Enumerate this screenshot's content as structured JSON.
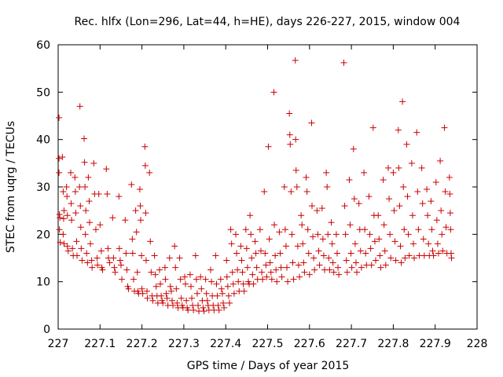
{
  "chart_data": {
    "type": "scatter",
    "title": "Rec. hlfx (Lon=296, Lat=44, h=HE), days 226-227, 2015, window 004",
    "xlabel": "GPS time / Days of year 2015",
    "ylabel": "STEC from uqrg / TECUs",
    "xlim": [
      227,
      228
    ],
    "ylim": [
      0,
      60
    ],
    "x_ticks": [
      "227",
      "227.1",
      "227.2",
      "227.3",
      "227.4",
      "227.5",
      "227.6",
      "227.7",
      "227.8",
      "227.9",
      "228"
    ],
    "y_ticks": [
      "0",
      "10",
      "20",
      "30",
      "40",
      "50",
      "60"
    ],
    "grid": false,
    "marker": "+",
    "color": "#cc0000",
    "points": [
      [
        227.002,
        44.6
      ],
      [
        227.002,
        36.0
      ],
      [
        227.002,
        33.0
      ],
      [
        227.003,
        24.2
      ],
      [
        227.004,
        23.5
      ],
      [
        227.003,
        21.0
      ],
      [
        227.005,
        18.3
      ],
      [
        227.01,
        36.3
      ],
      [
        227.012,
        29.0
      ],
      [
        227.014,
        25.0
      ],
      [
        227.013,
        23.3
      ],
      [
        227.012,
        20.0
      ],
      [
        227.014,
        18.0
      ],
      [
        227.02,
        30.0
      ],
      [
        227.021,
        28.0
      ],
      [
        227.022,
        24.0
      ],
      [
        227.022,
        17.5
      ],
      [
        227.024,
        16.5
      ],
      [
        227.03,
        33.0
      ],
      [
        227.031,
        26.5
      ],
      [
        227.032,
        23.0
      ],
      [
        227.034,
        17.0
      ],
      [
        227.036,
        15.5
      ],
      [
        227.04,
        32.0
      ],
      [
        227.041,
        29.0
      ],
      [
        227.042,
        24.5
      ],
      [
        227.044,
        18.5
      ],
      [
        227.045,
        15.5
      ],
      [
        227.052,
        47.0
      ],
      [
        227.051,
        30.0
      ],
      [
        227.053,
        26.0
      ],
      [
        227.054,
        21.5
      ],
      [
        227.055,
        17.0
      ],
      [
        227.057,
        14.5
      ],
      [
        227.062,
        40.2
      ],
      [
        227.063,
        35.2
      ],
      [
        227.064,
        30.0
      ],
      [
        227.066,
        25.0
      ],
      [
        227.065,
        20.0
      ],
      [
        227.068,
        16.0
      ],
      [
        227.07,
        14.0
      ],
      [
        227.072,
        32.0
      ],
      [
        227.074,
        27.0
      ],
      [
        227.075,
        22.5
      ],
      [
        227.077,
        18.0
      ],
      [
        227.08,
        14.5
      ],
      [
        227.081,
        13.0
      ],
      [
        227.085,
        35.0
      ],
      [
        227.087,
        28.5
      ],
      [
        227.09,
        21.0
      ],
      [
        227.093,
        15.0
      ],
      [
        227.094,
        13.5
      ],
      [
        227.097,
        28.5
      ],
      [
        227.1,
        22.0
      ],
      [
        227.103,
        16.5
      ],
      [
        227.104,
        13.0
      ],
      [
        227.106,
        12.5
      ],
      [
        227.115,
        33.8
      ],
      [
        227.117,
        28.5
      ],
      [
        227.119,
        17.0
      ],
      [
        227.12,
        15.0
      ],
      [
        227.123,
        14.0
      ],
      [
        227.13,
        23.5
      ],
      [
        227.132,
        15.0
      ],
      [
        227.134,
        13.0
      ],
      [
        227.136,
        12.0
      ],
      [
        227.145,
        28.0
      ],
      [
        227.146,
        17.0
      ],
      [
        227.148,
        14.5
      ],
      [
        227.15,
        13.5
      ],
      [
        227.152,
        10.5
      ],
      [
        227.16,
        23.0
      ],
      [
        227.162,
        16.0
      ],
      [
        227.164,
        12.5
      ],
      [
        227.166,
        9.0
      ],
      [
        227.168,
        8.5
      ],
      [
        227.175,
        30.5
      ],
      [
        227.177,
        19.0
      ],
      [
        227.178,
        16.0
      ],
      [
        227.18,
        10.5
      ],
      [
        227.182,
        8.0
      ],
      [
        227.185,
        25.0
      ],
      [
        227.187,
        20.5
      ],
      [
        227.189,
        12.0
      ],
      [
        227.19,
        8.0
      ],
      [
        227.192,
        7.5
      ],
      [
        227.195,
        29.5
      ],
      [
        227.196,
        26.0
      ],
      [
        227.197,
        23.0
      ],
      [
        227.199,
        15.5
      ],
      [
        227.2,
        8.5
      ],
      [
        227.202,
        7.5
      ],
      [
        227.207,
        38.5
      ],
      [
        227.208,
        34.5
      ],
      [
        227.209,
        24.5
      ],
      [
        227.21,
        14.5
      ],
      [
        227.212,
        8.0
      ],
      [
        227.213,
        6.5
      ],
      [
        227.218,
        33.0
      ],
      [
        227.22,
        18.5
      ],
      [
        227.222,
        12.0
      ],
      [
        227.224,
        7.0
      ],
      [
        227.226,
        6.0
      ],
      [
        227.23,
        15.5
      ],
      [
        227.232,
        11.5
      ],
      [
        227.234,
        9.0
      ],
      [
        227.236,
        7.0
      ],
      [
        227.238,
        5.5
      ],
      [
        227.242,
        12.5
      ],
      [
        227.244,
        9.5
      ],
      [
        227.246,
        7.0
      ],
      [
        227.248,
        6.0
      ],
      [
        227.25,
        5.5
      ],
      [
        227.255,
        13.0
      ],
      [
        227.256,
        10.5
      ],
      [
        227.258,
        7.5
      ],
      [
        227.26,
        6.5
      ],
      [
        227.262,
        5.0
      ],
      [
        227.266,
        15.0
      ],
      [
        227.268,
        9.0
      ],
      [
        227.27,
        8.0
      ],
      [
        227.272,
        6.0
      ],
      [
        227.274,
        5.0
      ],
      [
        227.278,
        17.5
      ],
      [
        227.28,
        13.0
      ],
      [
        227.282,
        8.5
      ],
      [
        227.284,
        5.5
      ],
      [
        227.286,
        4.5
      ],
      [
        227.29,
        15.0
      ],
      [
        227.292,
        10.5
      ],
      [
        227.294,
        6.5
      ],
      [
        227.296,
        5.0
      ],
      [
        227.298,
        4.5
      ],
      [
        227.302,
        11.0
      ],
      [
        227.304,
        9.5
      ],
      [
        227.306,
        6.0
      ],
      [
        227.308,
        4.5
      ],
      [
        227.31,
        4.0
      ],
      [
        227.315,
        11.5
      ],
      [
        227.317,
        9.0
      ],
      [
        227.319,
        6.5
      ],
      [
        227.321,
        5.0
      ],
      [
        227.323,
        4.0
      ],
      [
        227.328,
        15.5
      ],
      [
        227.33,
        10.5
      ],
      [
        227.332,
        7.5
      ],
      [
        227.334,
        5.0
      ],
      [
        227.336,
        3.8
      ],
      [
        227.34,
        11.0
      ],
      [
        227.342,
        8.5
      ],
      [
        227.344,
        6.0
      ],
      [
        227.346,
        4.5
      ],
      [
        227.348,
        3.8
      ],
      [
        227.352,
        10.5
      ],
      [
        227.354,
        7.5
      ],
      [
        227.356,
        6.0
      ],
      [
        227.358,
        5.0
      ],
      [
        227.36,
        4.0
      ],
      [
        227.364,
        12.5
      ],
      [
        227.366,
        10.0
      ],
      [
        227.368,
        7.0
      ],
      [
        227.37,
        5.0
      ],
      [
        227.372,
        4.0
      ],
      [
        227.376,
        15.5
      ],
      [
        227.378,
        9.5
      ],
      [
        227.38,
        7.0
      ],
      [
        227.382,
        5.0
      ],
      [
        227.384,
        4.0
      ],
      [
        227.388,
        10.5
      ],
      [
        227.39,
        8.5
      ],
      [
        227.392,
        7.5
      ],
      [
        227.394,
        5.5
      ],
      [
        227.396,
        4.5
      ],
      [
        227.402,
        14.5
      ],
      [
        227.403,
        11.0
      ],
      [
        227.405,
        9.0
      ],
      [
        227.407,
        7.0
      ],
      [
        227.409,
        5.5
      ],
      [
        227.412,
        21.0
      ],
      [
        227.414,
        18.0
      ],
      [
        227.416,
        12.0
      ],
      [
        227.418,
        9.5
      ],
      [
        227.42,
        7.5
      ],
      [
        227.424,
        20.0
      ],
      [
        227.426,
        16.0
      ],
      [
        227.428,
        12.5
      ],
      [
        227.43,
        10.0
      ],
      [
        227.432,
        8.0
      ],
      [
        227.436,
        17.5
      ],
      [
        227.438,
        14.5
      ],
      [
        227.44,
        12.0
      ],
      [
        227.442,
        9.5
      ],
      [
        227.444,
        8.0
      ],
      [
        227.448,
        21.0
      ],
      [
        227.45,
        17.0
      ],
      [
        227.452,
        13.0
      ],
      [
        227.454,
        10.0
      ],
      [
        227.456,
        9.5
      ],
      [
        227.458,
        24.0
      ],
      [
        227.46,
        20.0
      ],
      [
        227.462,
        15.0
      ],
      [
        227.464,
        11.5
      ],
      [
        227.466,
        9.5
      ],
      [
        227.47,
        18.5
      ],
      [
        227.472,
        16.0
      ],
      [
        227.474,
        13.0
      ],
      [
        227.476,
        10.5
      ],
      [
        227.482,
        21.0
      ],
      [
        227.484,
        16.5
      ],
      [
        227.486,
        12.0
      ],
      [
        227.488,
        10.5
      ],
      [
        227.492,
        29.0
      ],
      [
        227.494,
        16.0
      ],
      [
        227.496,
        13.5
      ],
      [
        227.498,
        11.0
      ],
      [
        227.502,
        38.5
      ],
      [
        227.504,
        19.0
      ],
      [
        227.506,
        14.0
      ],
      [
        227.508,
        12.0
      ],
      [
        227.51,
        10.5
      ],
      [
        227.515,
        50.0
      ],
      [
        227.516,
        22.0
      ],
      [
        227.518,
        15.5
      ],
      [
        227.52,
        12.5
      ],
      [
        227.522,
        10.0
      ],
      [
        227.528,
        20.5
      ],
      [
        227.53,
        16.0
      ],
      [
        227.532,
        13.0
      ],
      [
        227.534,
        11.0
      ],
      [
        227.54,
        30.0
      ],
      [
        227.542,
        21.0
      ],
      [
        227.544,
        17.5
      ],
      [
        227.546,
        13.0
      ],
      [
        227.548,
        10.0
      ],
      [
        227.552,
        45.5
      ],
      [
        227.553,
        41.0
      ],
      [
        227.554,
        39.0
      ],
      [
        227.556,
        29.0
      ],
      [
        227.558,
        20.0
      ],
      [
        227.56,
        14.0
      ],
      [
        227.562,
        10.5
      ],
      [
        227.566,
        56.7
      ],
      [
        227.567,
        40.0
      ],
      [
        227.568,
        33.5
      ],
      [
        227.57,
        30.0
      ],
      [
        227.572,
        17.5
      ],
      [
        227.574,
        13.5
      ],
      [
        227.576,
        11.0
      ],
      [
        227.58,
        24.0
      ],
      [
        227.582,
        22.0
      ],
      [
        227.584,
        18.0
      ],
      [
        227.586,
        14.0
      ],
      [
        227.588,
        12.0
      ],
      [
        227.592,
        32.0
      ],
      [
        227.594,
        29.0
      ],
      [
        227.596,
        21.0
      ],
      [
        227.598,
        16.0
      ],
      [
        227.6,
        11.5
      ],
      [
        227.605,
        43.5
      ],
      [
        227.606,
        26.0
      ],
      [
        227.608,
        19.5
      ],
      [
        227.61,
        15.0
      ],
      [
        227.612,
        12.5
      ],
      [
        227.618,
        25.0
      ],
      [
        227.62,
        20.0
      ],
      [
        227.622,
        16.5
      ],
      [
        227.624,
        13.5
      ],
      [
        227.63,
        25.5
      ],
      [
        227.632,
        19.0
      ],
      [
        227.634,
        15.5
      ],
      [
        227.636,
        12.5
      ],
      [
        227.64,
        33.0
      ],
      [
        227.642,
        30.0
      ],
      [
        227.644,
        20.0
      ],
      [
        227.646,
        15.0
      ],
      [
        227.648,
        12.5
      ],
      [
        227.652,
        22.5
      ],
      [
        227.654,
        18.0
      ],
      [
        227.656,
        14.0
      ],
      [
        227.658,
        12.0
      ],
      [
        227.664,
        20.0
      ],
      [
        227.666,
        16.0
      ],
      [
        227.668,
        13.0
      ],
      [
        227.67,
        11.5
      ],
      [
        227.682,
        56.2
      ],
      [
        227.684,
        26.0
      ],
      [
        227.686,
        20.0
      ],
      [
        227.688,
        14.5
      ],
      [
        227.69,
        12.0
      ],
      [
        227.695,
        31.5
      ],
      [
        227.697,
        22.0
      ],
      [
        227.699,
        16.0
      ],
      [
        227.701,
        13.0
      ],
      [
        227.705,
        38.0
      ],
      [
        227.707,
        27.5
      ],
      [
        227.709,
        18.0
      ],
      [
        227.711,
        14.0
      ],
      [
        227.713,
        12.0
      ],
      [
        227.718,
        26.5
      ],
      [
        227.72,
        21.0
      ],
      [
        227.722,
        16.5
      ],
      [
        227.724,
        13.0
      ],
      [
        227.73,
        33.0
      ],
      [
        227.732,
        21.0
      ],
      [
        227.734,
        16.0
      ],
      [
        227.736,
        13.5
      ],
      [
        227.742,
        28.0
      ],
      [
        227.744,
        20.0
      ],
      [
        227.746,
        17.0
      ],
      [
        227.748,
        13.5
      ],
      [
        227.752,
        42.5
      ],
      [
        227.754,
        24.0
      ],
      [
        227.756,
        18.5
      ],
      [
        227.758,
        14.5
      ],
      [
        227.764,
        24.0
      ],
      [
        227.766,
        19.0
      ],
      [
        227.768,
        15.5
      ],
      [
        227.77,
        13.0
      ],
      [
        227.776,
        31.5
      ],
      [
        227.778,
        22.0
      ],
      [
        227.78,
        16.5
      ],
      [
        227.782,
        13.5
      ],
      [
        227.788,
        34.0
      ],
      [
        227.79,
        27.5
      ],
      [
        227.792,
        20.0
      ],
      [
        227.794,
        15.0
      ],
      [
        227.8,
        33.0
      ],
      [
        227.802,
        25.0
      ],
      [
        227.804,
        18.5
      ],
      [
        227.806,
        14.5
      ],
      [
        227.812,
        42.0
      ],
      [
        227.813,
        34.0
      ],
      [
        227.815,
        26.0
      ],
      [
        227.817,
        17.5
      ],
      [
        227.819,
        14.0
      ],
      [
        227.822,
        48.0
      ],
      [
        227.824,
        30.0
      ],
      [
        227.826,
        21.0
      ],
      [
        227.828,
        15.0
      ],
      [
        227.832,
        39.0
      ],
      [
        227.834,
        28.0
      ],
      [
        227.836,
        20.0
      ],
      [
        227.838,
        15.5
      ],
      [
        227.844,
        35.0
      ],
      [
        227.846,
        24.0
      ],
      [
        227.848,
        18.0
      ],
      [
        227.85,
        15.0
      ],
      [
        227.856,
        41.5
      ],
      [
        227.858,
        29.0
      ],
      [
        227.86,
        21.0
      ],
      [
        227.862,
        15.5
      ],
      [
        227.868,
        34.0
      ],
      [
        227.87,
        26.5
      ],
      [
        227.872,
        19.0
      ],
      [
        227.874,
        15.5
      ],
      [
        227.88,
        29.5
      ],
      [
        227.882,
        24.0
      ],
      [
        227.884,
        18.0
      ],
      [
        227.886,
        15.5
      ],
      [
        227.89,
        27.0
      ],
      [
        227.892,
        21.0
      ],
      [
        227.894,
        16.5
      ],
      [
        227.896,
        15.5
      ],
      [
        227.902,
        31.0
      ],
      [
        227.904,
        23.0
      ],
      [
        227.906,
        18.0
      ],
      [
        227.908,
        16.0
      ],
      [
        227.912,
        35.5
      ],
      [
        227.914,
        25.0
      ],
      [
        227.916,
        20.0
      ],
      [
        227.918,
        16.5
      ],
      [
        227.922,
        42.5
      ],
      [
        227.924,
        29.0
      ],
      [
        227.926,
        21.5
      ],
      [
        227.928,
        16.0
      ],
      [
        227.934,
        32.0
      ],
      [
        227.935,
        28.5
      ],
      [
        227.936,
        24.5
      ],
      [
        227.937,
        21.0
      ],
      [
        227.938,
        16.0
      ],
      [
        227.939,
        15.0
      ]
    ]
  }
}
